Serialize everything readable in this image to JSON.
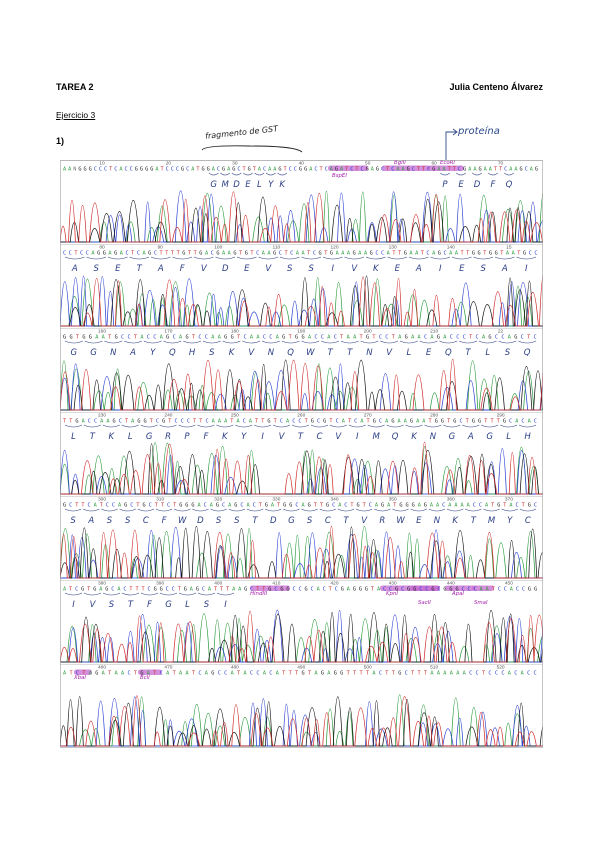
{
  "header": {
    "title": "TAREA 2",
    "author": "Julia Centeno Álvarez"
  },
  "exercise": {
    "title": "Ejercicio 3",
    "question": "1)"
  },
  "annotations": {
    "gst_fragment": "fragmento de GST",
    "protein": "proteína"
  },
  "rows": [
    {
      "numbers": [
        "10",
        "20",
        "30",
        "40",
        "50",
        "60",
        "70"
      ],
      "seq": "AANGGGCCCTCACCGGGGATCCCGCATGGACGAGCTGTACAAGTCCGGACTCAGATCTCGAGCTCAAGCTTCGAATTCGAAGAATTCAAGCAG",
      "aa": [
        "G",
        "M",
        "D",
        "E",
        "L",
        "Y",
        "K",
        "P",
        "E",
        "D",
        "F",
        "Q"
      ],
      "sites": [
        "BspEI",
        "BglII",
        "EcoRI"
      ]
    },
    {
      "numbers": [
        "80",
        "90",
        "100",
        "110",
        "120",
        "130",
        "140",
        "15"
      ],
      "seq": "CCTCCAGGAGACTCAGCTTTTGTTGACGAAGTGTCAAGCTCAATCGTGAAAGAAGCCATTGAATCAGCAATTGGTGGTAATGCC",
      "aa": [
        "A",
        "S",
        "E",
        "T",
        "A",
        "F",
        "V",
        "D",
        "E",
        "V",
        "S",
        "S",
        "I",
        "V",
        "K",
        "E",
        "A",
        "I",
        "E",
        "S",
        "A",
        "I"
      ]
    },
    {
      "numbers": [
        "160",
        "170",
        "180",
        "190",
        "200",
        "210",
        "22"
      ],
      "seq": "GGTGGAATGCCTACCAGCAGTCCAAGGTCAACCAGTGGACCACTAATGTCCTAGAACAGACCCTCAGCCAGCTC",
      "aa": [
        "G",
        "G",
        "N",
        "A",
        "Y",
        "Q",
        "H",
        "S",
        "K",
        "V",
        "N",
        "Q",
        "W",
        "T",
        "T",
        "N",
        "V",
        "L",
        "E",
        "Q",
        "T",
        "L",
        "S",
        "Q"
      ]
    },
    {
      "numbers": [
        "230",
        "240",
        "250",
        "260",
        "270",
        "280",
        "290"
      ],
      "seq": "TTGACCAAGCTAGGTCGTCCCTTCAAATACATTGTCACCTGCGTCATCATGCAGAAGAATGGTGCTGGTTTGCACAC",
      "aa": [
        "L",
        "T",
        "K",
        "L",
        "G",
        "R",
        "P",
        "F",
        "K",
        "Y",
        "I",
        "V",
        "T",
        "C",
        "V",
        "I",
        "M",
        "Q",
        "K",
        "N",
        "G",
        "A",
        "G",
        "L",
        "H"
      ]
    },
    {
      "numbers": [
        "300",
        "310",
        "320",
        "330",
        "340",
        "350",
        "360",
        "370"
      ],
      "seq": "GCTTCATCCAGCTGCTTCTGGGACAGCAGCACTGATGGCAGTTGCACTGTCAGATGGGAGAACAAAACCATGTACTGC",
      "aa": [
        "S",
        "A",
        "S",
        "S",
        "C",
        "F",
        "W",
        "D",
        "S",
        "S",
        "T",
        "D",
        "G",
        "S",
        "C",
        "T",
        "V",
        "R",
        "W",
        "E",
        "N",
        "K",
        "T",
        "M",
        "Y",
        "C"
      ]
    },
    {
      "numbers": [
        "380",
        "390",
        "400",
        "410",
        "420",
        "430",
        "440",
        "450"
      ],
      "seq": "ATCGTGAGCACTTTCGGCCTGAGCATTTAAGCTTGCGGCCGCACTCGAGGGTACCGCGGCCGCGGGCCCAATCCACCGG",
      "aa": [
        "I",
        "V",
        "S",
        "T",
        "F",
        "G",
        "L",
        "S",
        "I"
      ],
      "sites": [
        "HindIII",
        "KpnI",
        "SacII",
        "ApaI",
        "SmaI"
      ]
    },
    {
      "numbers": [
        "460",
        "470",
        "480",
        "490",
        "500",
        "510",
        "520"
      ],
      "seq": "ATCTAGATAACTGATCATAATCAGCCATACCACATTTGTAGAGGTTTTACTTGCTTTAAAAAACCTCCCACACC",
      "aa": [],
      "sites": [
        "XbaI",
        "BclI"
      ]
    }
  ]
}
